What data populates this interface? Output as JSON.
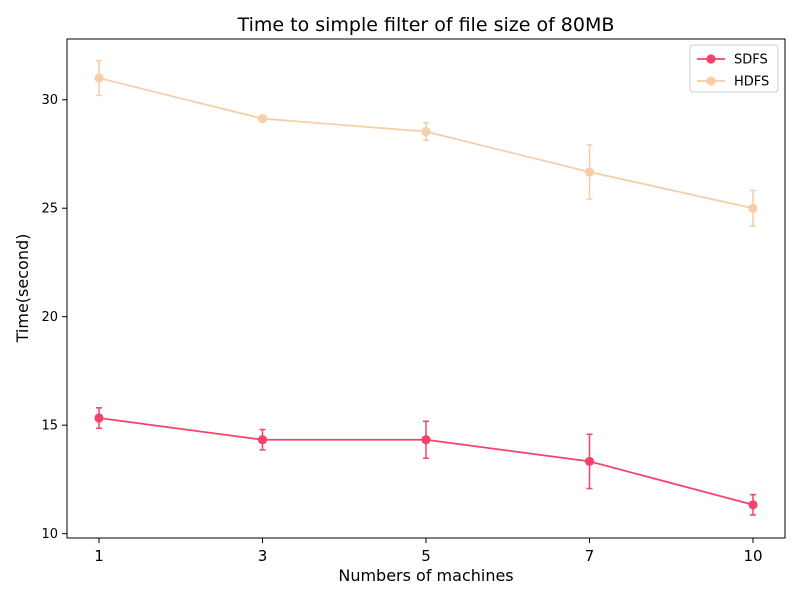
{
  "chart_data": {
    "type": "line",
    "title": "Time to simple filter of file size of 80MB",
    "xlabel": "Numbers of machines",
    "ylabel": "Time(second)",
    "categories": [
      "1",
      "3",
      "5",
      "7",
      "10"
    ],
    "ylim": [
      9.8,
      32.8
    ],
    "yticks": [
      10,
      15,
      20,
      25,
      30
    ],
    "grid": false,
    "legend_position": "top-right",
    "series": [
      {
        "name": "SDFS",
        "color": "#f4436a",
        "values": [
          15.33,
          14.33,
          14.33,
          13.33,
          11.33
        ],
        "errors": [
          0.47,
          0.47,
          0.85,
          1.25,
          0.47
        ]
      },
      {
        "name": "HDFS",
        "color": "#f8cda9",
        "values": [
          31.0,
          29.13,
          28.53,
          26.67,
          25.0
        ],
        "errors": [
          0.8,
          0.05,
          0.4,
          1.25,
          0.82
        ]
      }
    ]
  }
}
